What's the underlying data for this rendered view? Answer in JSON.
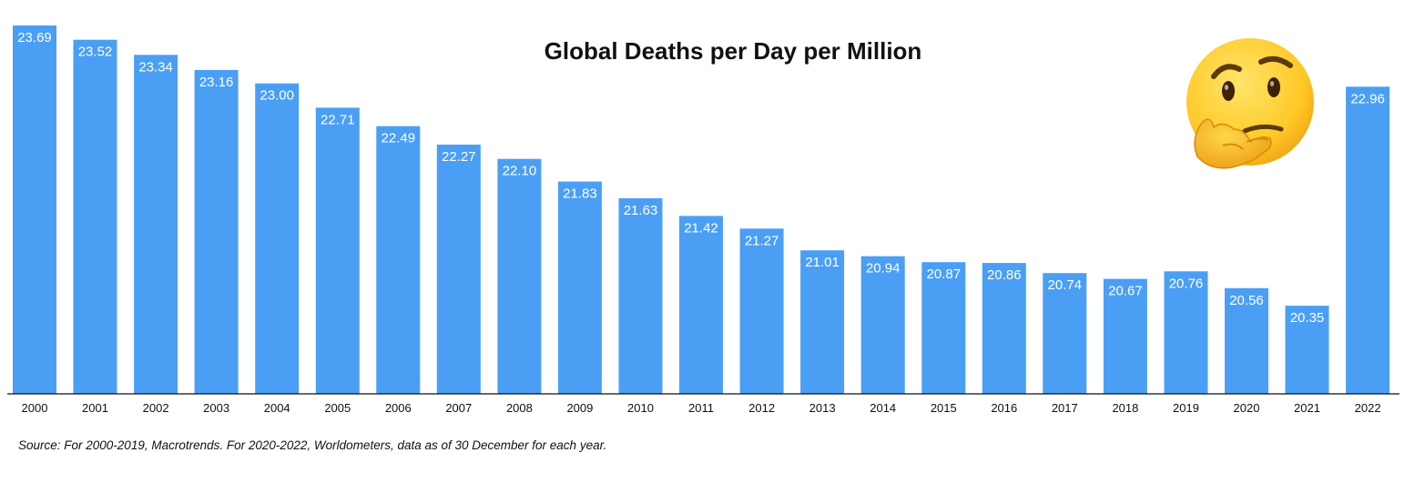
{
  "chart_data": {
    "type": "bar",
    "title": "Global Deaths per Day per Million",
    "categories": [
      "2000",
      "2001",
      "2002",
      "2003",
      "2004",
      "2005",
      "2006",
      "2007",
      "2008",
      "2009",
      "2010",
      "2011",
      "2012",
      "2013",
      "2014",
      "2015",
      "2016",
      "2017",
      "2018",
      "2019",
      "2020",
      "2021",
      "2022"
    ],
    "values": [
      23.69,
      23.52,
      23.34,
      23.16,
      23.0,
      22.71,
      22.49,
      22.27,
      22.1,
      21.83,
      21.63,
      21.42,
      21.27,
      21.01,
      20.94,
      20.87,
      20.86,
      20.74,
      20.67,
      20.76,
      20.56,
      20.35,
      22.96
    ],
    "value_labels": [
      "23.69",
      "23.52",
      "23.34",
      "23.16",
      "23.00",
      "22.71",
      "22.49",
      "22.27",
      "22.10",
      "21.83",
      "21.63",
      "21.42",
      "21.27",
      "21.01",
      "20.94",
      "20.87",
      "20.86",
      "20.74",
      "20.67",
      "20.76",
      "20.56",
      "20.35",
      "22.96"
    ],
    "ylim": [
      19.3,
      23.69
    ],
    "bar_color": "#4a9ff5",
    "grid": false,
    "source": "Source: For 2000-2019, Macrotrends. For 2020-2022, Worldometers, data as of 30 December for each year.",
    "decoration_icon": "thinking-face-emoji"
  }
}
